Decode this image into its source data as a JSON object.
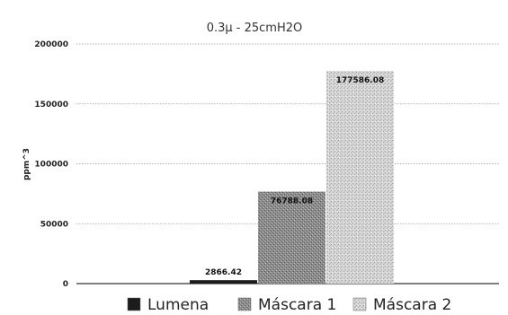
{
  "chart_data": {
    "type": "bar",
    "title": "0.3μ - 25cmH2O",
    "xlabel": "",
    "ylabel": "ppm^3",
    "ylim": [
      0,
      200000
    ],
    "yticks": [
      0,
      50000,
      100000,
      150000,
      200000
    ],
    "yticklabels": [
      "0",
      "50000",
      "100000",
      "150000",
      "200000"
    ],
    "grid": true,
    "legend_position": "bottom",
    "series": [
      {
        "name": "Lumena",
        "value": 2866.42,
        "label": "2866.42",
        "color": "#1c1c1c"
      },
      {
        "name": "Máscara 1",
        "value": 76788.08,
        "label": "76788.08",
        "color": "#7d7d7d"
      },
      {
        "name": "Máscara 2",
        "value": 177586.08,
        "label": "177586.08",
        "color": "#cfcfcf"
      }
    ]
  }
}
